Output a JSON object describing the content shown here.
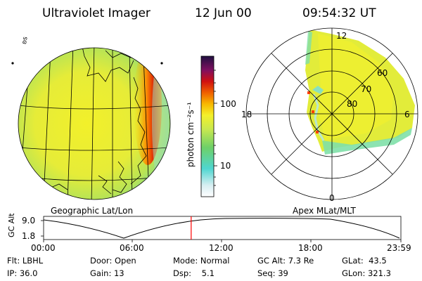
{
  "header": {
    "instrument": "Ultraviolet Imager",
    "date": "12 Jun 00",
    "time": "09:54:32 UT"
  },
  "colorbar": {
    "unit_label": "photon cm⁻²s⁻¹",
    "ticks": [
      "100",
      "10"
    ]
  },
  "globe": {
    "title": "Geographic Lat/Lon",
    "corner_mark": "ʚs"
  },
  "polar": {
    "title": "Apex MLat/MLT",
    "hour_labels": {
      "top": "12",
      "left": "18",
      "right": "6",
      "bottom": "0"
    },
    "lat_labels": [
      "60",
      "70",
      "80"
    ]
  },
  "altitude_plot": {
    "ylabel": "GC Alt",
    "y_ticks": [
      "9.0",
      "1.8"
    ],
    "x_ticks": [
      "00:00",
      "06:00",
      "12:00",
      "18:00",
      "23:59"
    ],
    "current_time_fraction": 0.413,
    "marker_color": "#ff0000"
  },
  "status": {
    "row1": [
      {
        "label": "Flt:",
        "value": "LBHL"
      },
      {
        "label": "Door:",
        "value": "Open"
      },
      {
        "label": "Mode:",
        "value": "Normal"
      },
      {
        "label": "GC Alt:",
        "value": "7.3 Re"
      },
      {
        "label": "GLat:",
        "value": "43.5"
      }
    ],
    "row2": [
      {
        "label": "IP:",
        "value": "36.0"
      },
      {
        "label": "Gain:",
        "value": "13"
      },
      {
        "label": "Dsp:",
        "value": "5.1"
      },
      {
        "label": "Seq:",
        "value": "39"
      },
      {
        "label": "GLon:",
        "value": "321.3"
      }
    ]
  }
}
